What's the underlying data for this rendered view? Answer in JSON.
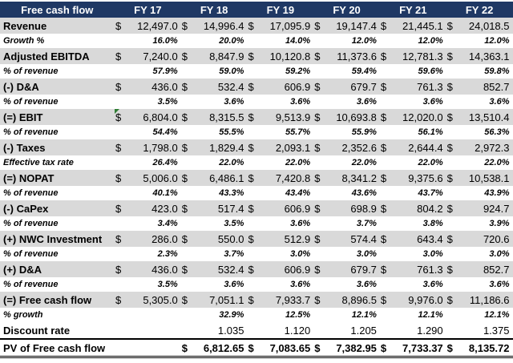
{
  "header": {
    "title": "Free cash flow",
    "years": [
      "FY 17",
      "FY 18",
      "FY 19",
      "FY 20",
      "FY 21",
      "FY 22"
    ]
  },
  "currency_symbol": "$",
  "rows": [
    {
      "type": "main",
      "label": "Revenue",
      "cur": true,
      "values": [
        "12,497.0",
        "14,996.4",
        "17,095.9",
        "19,147.4",
        "21,445.1",
        "24,018.5"
      ]
    },
    {
      "type": "sub",
      "label": "Growth %",
      "values": [
        "16.0%",
        "20.0%",
        "14.0%",
        "12.0%",
        "12.0%",
        "12.0%"
      ]
    },
    {
      "type": "main",
      "label": "Adjusted EBITDA",
      "cur": true,
      "values": [
        "7,240.0",
        "8,847.9",
        "10,120.8",
        "11,373.6",
        "12,781.3",
        "14,363.1"
      ]
    },
    {
      "type": "sub",
      "label": "% of revenue",
      "values": [
        "57.9%",
        "59.0%",
        "59.2%",
        "59.4%",
        "59.6%",
        "59.8%"
      ]
    },
    {
      "type": "main",
      "label": "(-) D&A",
      "cur": true,
      "values": [
        "436.0",
        "532.4",
        "606.9",
        "679.7",
        "761.3",
        "852.7"
      ]
    },
    {
      "type": "sub",
      "label": "% of revenue",
      "values": [
        "3.5%",
        "3.6%",
        "3.6%",
        "3.6%",
        "3.6%",
        "3.6%"
      ]
    },
    {
      "type": "main",
      "label": "(=) EBIT",
      "cur": true,
      "values": [
        "6,804.0",
        "8,315.5",
        "9,513.9",
        "10,693.8",
        "12,020.0",
        "13,510.4"
      ]
    },
    {
      "type": "sub",
      "label": "% of revenue",
      "values": [
        "54.4%",
        "55.5%",
        "55.7%",
        "55.9%",
        "56.1%",
        "56.3%"
      ]
    },
    {
      "type": "main",
      "label": "(-) Taxes",
      "cur": true,
      "values": [
        "1,798.0",
        "1,829.4",
        "2,093.1",
        "2,352.6",
        "2,644.4",
        "2,972.3"
      ]
    },
    {
      "type": "sub",
      "label": "Effective tax rate",
      "values": [
        "26.4%",
        "22.0%",
        "22.0%",
        "22.0%",
        "22.0%",
        "22.0%"
      ]
    },
    {
      "type": "main",
      "label": "(=) NOPAT",
      "cur": true,
      "values": [
        "5,006.0",
        "6,486.1",
        "7,420.8",
        "8,341.2",
        "9,375.6",
        "10,538.1"
      ]
    },
    {
      "type": "sub",
      "label": "% of revenue",
      "values": [
        "40.1%",
        "43.3%",
        "43.4%",
        "43.6%",
        "43.7%",
        "43.9%"
      ]
    },
    {
      "type": "main",
      "label": "(-) CaPex",
      "cur": true,
      "values": [
        "423.0",
        "517.4",
        "606.9",
        "698.9",
        "804.2",
        "924.7"
      ]
    },
    {
      "type": "sub",
      "label": "% of revenue",
      "values": [
        "3.4%",
        "3.5%",
        "3.6%",
        "3.7%",
        "3.8%",
        "3.9%"
      ]
    },
    {
      "type": "main",
      "label": "(+) NWC Investment",
      "cur": true,
      "values": [
        "286.0",
        "550.0",
        "512.9",
        "574.4",
        "643.4",
        "720.6"
      ]
    },
    {
      "type": "sub",
      "label": "% of revenue",
      "values": [
        "2.3%",
        "3.7%",
        "3.0%",
        "3.0%",
        "3.0%",
        "3.0%"
      ]
    },
    {
      "type": "main",
      "label": "(+) D&A",
      "cur": true,
      "values": [
        "436.0",
        "532.4",
        "606.9",
        "679.7",
        "761.3",
        "852.7"
      ]
    },
    {
      "type": "sub",
      "label": "% of revenue",
      "values": [
        "3.5%",
        "3.6%",
        "3.6%",
        "3.6%",
        "3.6%",
        "3.6%"
      ]
    },
    {
      "type": "main",
      "label": "(=) Free cash flow",
      "cur": true,
      "values": [
        "5,305.0",
        "7,051.1",
        "7,933.7",
        "8,896.5",
        "9,976.0",
        "11,186.6"
      ]
    },
    {
      "type": "sub",
      "label": "% growth",
      "values": [
        "",
        "32.9%",
        "12.5%",
        "12.1%",
        "12.1%",
        "12.1%"
      ]
    },
    {
      "type": "plain",
      "label": "Discount rate",
      "cur": false,
      "values": [
        "",
        "1.035",
        "1.120",
        "1.205",
        "1.290",
        "1.375"
      ]
    },
    {
      "type": "final",
      "label": "PV of Free cash flow",
      "cur": true,
      "skipFirst": true,
      "values": [
        "",
        "6,812.65",
        "7,083.65",
        "7,382.95",
        "7,733.37",
        "8,135.72"
      ]
    }
  ]
}
